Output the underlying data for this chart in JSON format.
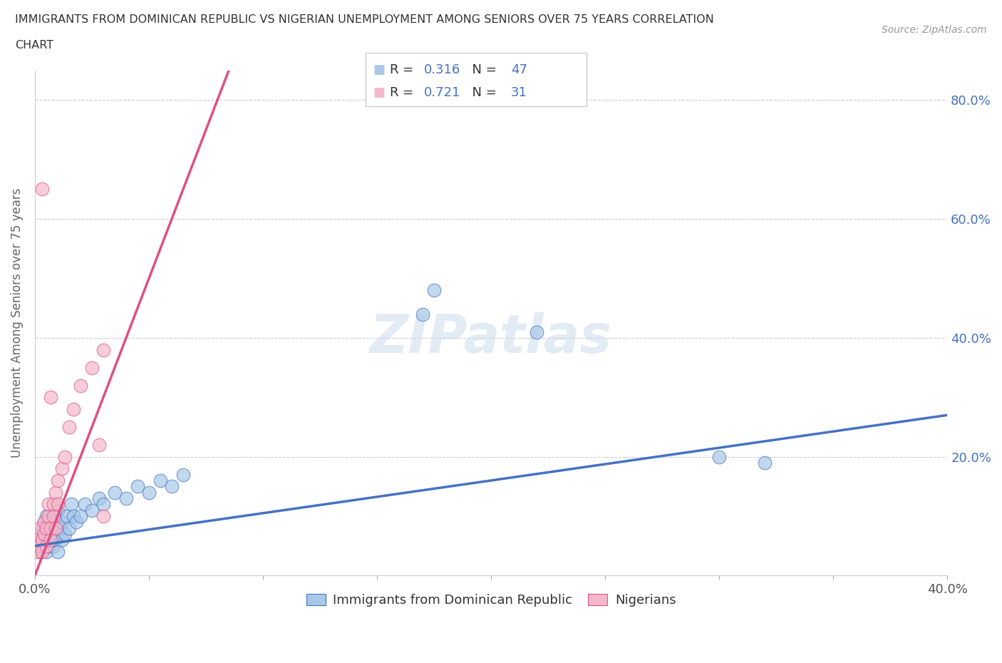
{
  "title_line1": "IMMIGRANTS FROM DOMINICAN REPUBLIC VS NIGERIAN UNEMPLOYMENT AMONG SENIORS OVER 75 YEARS CORRELATION",
  "title_line2": "CHART",
  "source": "Source: ZipAtlas.com",
  "ylabel": "Unemployment Among Seniors over 75 years",
  "xmin": 0.0,
  "xmax": 0.4,
  "ymin": 0.0,
  "ymax": 0.85,
  "color_blue": "#a8c8e8",
  "color_pink": "#f4b8cc",
  "color_blue_edge": "#4472c4",
  "color_pink_edge": "#e05080",
  "line_blue": "#4472c4",
  "line_pink": "#e05080",
  "color_blue_text": "#4472c4",
  "grid_color": "#cccccc",
  "background_color": "#ffffff",
  "blue_x": [
    0.001,
    0.002,
    0.002,
    0.003,
    0.003,
    0.004,
    0.004,
    0.005,
    0.005,
    0.005,
    0.006,
    0.006,
    0.007,
    0.007,
    0.008,
    0.008,
    0.009,
    0.009,
    0.01,
    0.01,
    0.01,
    0.011,
    0.012,
    0.012,
    0.013,
    0.014,
    0.015,
    0.016,
    0.017,
    0.018,
    0.02,
    0.022,
    0.025,
    0.028,
    0.03,
    0.035,
    0.04,
    0.045,
    0.05,
    0.055,
    0.06,
    0.065,
    0.17,
    0.175,
    0.22,
    0.3,
    0.32
  ],
  "blue_y": [
    0.05,
    0.04,
    0.07,
    0.05,
    0.08,
    0.06,
    0.09,
    0.04,
    0.07,
    0.1,
    0.05,
    0.08,
    0.06,
    0.09,
    0.05,
    0.08,
    0.06,
    0.1,
    0.04,
    0.07,
    0.11,
    0.08,
    0.06,
    0.09,
    0.07,
    0.1,
    0.08,
    0.12,
    0.1,
    0.09,
    0.1,
    0.12,
    0.11,
    0.13,
    0.12,
    0.14,
    0.13,
    0.15,
    0.14,
    0.16,
    0.15,
    0.17,
    0.44,
    0.48,
    0.41,
    0.2,
    0.19
  ],
  "pink_x": [
    0.001,
    0.001,
    0.002,
    0.002,
    0.003,
    0.003,
    0.003,
    0.004,
    0.004,
    0.005,
    0.005,
    0.006,
    0.006,
    0.007,
    0.007,
    0.007,
    0.008,
    0.008,
    0.009,
    0.009,
    0.01,
    0.01,
    0.012,
    0.013,
    0.015,
    0.017,
    0.02,
    0.025,
    0.028,
    0.03,
    0.03
  ],
  "pink_y": [
    0.04,
    0.06,
    0.05,
    0.08,
    0.06,
    0.04,
    0.65,
    0.07,
    0.09,
    0.05,
    0.08,
    0.1,
    0.12,
    0.08,
    0.06,
    0.3,
    0.1,
    0.12,
    0.14,
    0.08,
    0.16,
    0.12,
    0.18,
    0.2,
    0.25,
    0.28,
    0.32,
    0.35,
    0.22,
    0.38,
    0.1
  ],
  "blue_line_x0": 0.0,
  "blue_line_x1": 0.4,
  "blue_line_y0": 0.05,
  "blue_line_y1": 0.27,
  "pink_line_x0": 0.0,
  "pink_line_x1": 0.085,
  "pink_line_y0": 0.0,
  "pink_line_y1": 0.85
}
